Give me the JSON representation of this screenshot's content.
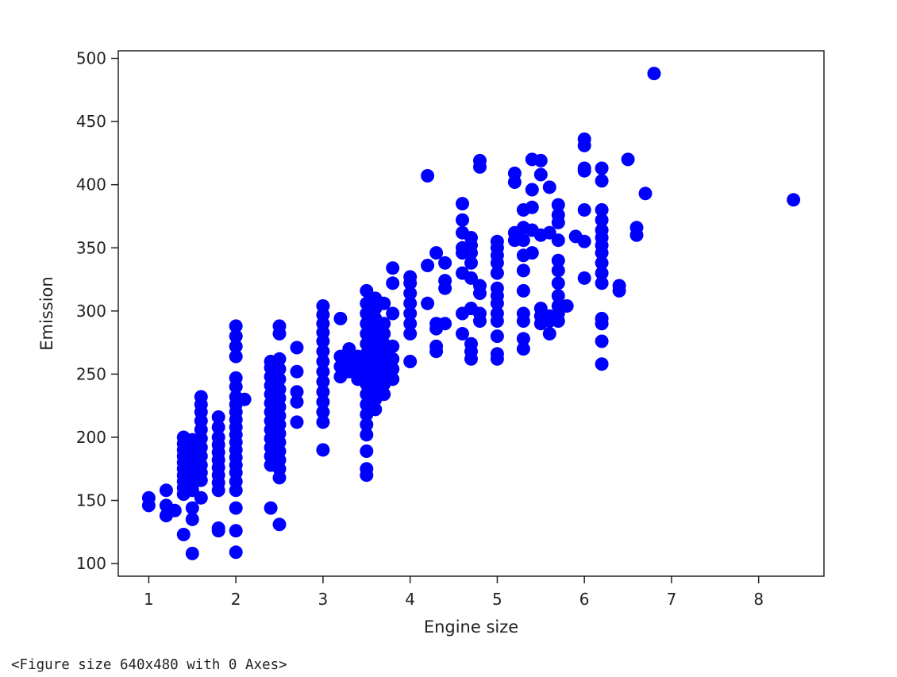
{
  "chart_data": {
    "type": "scatter",
    "xlabel": "Engine size",
    "ylabel": "Emission",
    "xlim": [
      0.65,
      8.75
    ],
    "ylim": [
      90,
      506
    ],
    "x_ticks": [
      1,
      2,
      3,
      4,
      5,
      6,
      7,
      8
    ],
    "y_ticks": [
      100,
      150,
      200,
      250,
      300,
      350,
      400,
      450,
      500
    ],
    "grid": false,
    "legend": "none",
    "marker_color": "#0000ff",
    "points": [
      [
        1.0,
        146
      ],
      [
        1.0,
        152
      ],
      [
        1.2,
        138
      ],
      [
        1.2,
        146
      ],
      [
        1.2,
        158
      ],
      [
        1.3,
        142
      ],
      [
        1.4,
        123
      ],
      [
        1.4,
        155
      ],
      [
        1.4,
        160
      ],
      [
        1.4,
        165
      ],
      [
        1.4,
        170
      ],
      [
        1.4,
        175
      ],
      [
        1.4,
        180
      ],
      [
        1.4,
        185
      ],
      [
        1.4,
        190
      ],
      [
        1.4,
        195
      ],
      [
        1.4,
        200
      ],
      [
        1.5,
        108
      ],
      [
        1.5,
        135
      ],
      [
        1.5,
        144
      ],
      [
        1.5,
        158
      ],
      [
        1.5,
        162
      ],
      [
        1.5,
        168
      ],
      [
        1.5,
        172
      ],
      [
        1.5,
        176
      ],
      [
        1.5,
        182
      ],
      [
        1.5,
        188
      ],
      [
        1.5,
        194
      ],
      [
        1.5,
        198
      ],
      [
        1.6,
        152
      ],
      [
        1.6,
        166
      ],
      [
        1.6,
        172
      ],
      [
        1.6,
        178
      ],
      [
        1.6,
        185
      ],
      [
        1.6,
        192
      ],
      [
        1.6,
        199
      ],
      [
        1.6,
        206
      ],
      [
        1.6,
        213
      ],
      [
        1.6,
        220
      ],
      [
        1.6,
        226
      ],
      [
        1.6,
        232
      ],
      [
        1.8,
        126
      ],
      [
        1.8,
        128
      ],
      [
        1.8,
        158
      ],
      [
        1.8,
        164
      ],
      [
        1.8,
        170
      ],
      [
        1.8,
        176
      ],
      [
        1.8,
        182
      ],
      [
        1.8,
        188
      ],
      [
        1.8,
        194
      ],
      [
        1.8,
        200
      ],
      [
        1.8,
        208
      ],
      [
        1.8,
        216
      ],
      [
        2.0,
        109
      ],
      [
        2.0,
        126
      ],
      [
        2.0,
        144
      ],
      [
        2.0,
        158
      ],
      [
        2.0,
        165
      ],
      [
        2.0,
        172
      ],
      [
        2.0,
        178
      ],
      [
        2.0,
        184
      ],
      [
        2.0,
        190
      ],
      [
        2.0,
        196
      ],
      [
        2.0,
        202
      ],
      [
        2.0,
        208
      ],
      [
        2.0,
        214
      ],
      [
        2.0,
        220
      ],
      [
        2.0,
        226
      ],
      [
        2.0,
        232
      ],
      [
        2.0,
        240
      ],
      [
        2.0,
        247
      ],
      [
        2.0,
        264
      ],
      [
        2.0,
        272
      ],
      [
        2.0,
        280
      ],
      [
        2.0,
        288
      ],
      [
        2.1,
        230
      ],
      [
        2.4,
        144
      ],
      [
        2.4,
        178
      ],
      [
        2.4,
        185
      ],
      [
        2.4,
        192
      ],
      [
        2.4,
        199
      ],
      [
        2.4,
        206
      ],
      [
        2.4,
        213
      ],
      [
        2.4,
        220
      ],
      [
        2.4,
        227
      ],
      [
        2.4,
        234
      ],
      [
        2.4,
        241
      ],
      [
        2.4,
        248
      ],
      [
        2.4,
        255
      ],
      [
        2.4,
        260
      ],
      [
        2.5,
        131
      ],
      [
        2.5,
        168
      ],
      [
        2.5,
        175
      ],
      [
        2.5,
        182
      ],
      [
        2.5,
        189
      ],
      [
        2.5,
        196
      ],
      [
        2.5,
        203
      ],
      [
        2.5,
        210
      ],
      [
        2.5,
        217
      ],
      [
        2.5,
        224
      ],
      [
        2.5,
        231
      ],
      [
        2.5,
        238
      ],
      [
        2.5,
        246
      ],
      [
        2.5,
        254
      ],
      [
        2.5,
        262
      ],
      [
        2.5,
        282
      ],
      [
        2.5,
        288
      ],
      [
        2.7,
        212
      ],
      [
        2.7,
        228
      ],
      [
        2.7,
        236
      ],
      [
        2.7,
        252
      ],
      [
        2.7,
        271
      ],
      [
        3.0,
        190
      ],
      [
        3.0,
        212
      ],
      [
        3.0,
        220
      ],
      [
        3.0,
        228
      ],
      [
        3.0,
        236
      ],
      [
        3.0,
        244
      ],
      [
        3.0,
        252
      ],
      [
        3.0,
        260
      ],
      [
        3.0,
        268
      ],
      [
        3.0,
        276
      ],
      [
        3.0,
        283
      ],
      [
        3.0,
        290
      ],
      [
        3.0,
        297
      ],
      [
        3.0,
        304
      ],
      [
        3.2,
        248
      ],
      [
        3.2,
        256
      ],
      [
        3.2,
        264
      ],
      [
        3.2,
        294
      ],
      [
        3.3,
        252
      ],
      [
        3.3,
        262
      ],
      [
        3.3,
        270
      ],
      [
        3.4,
        246
      ],
      [
        3.4,
        252
      ],
      [
        3.4,
        258
      ],
      [
        3.4,
        264
      ],
      [
        3.5,
        170
      ],
      [
        3.5,
        175
      ],
      [
        3.5,
        189
      ],
      [
        3.5,
        202
      ],
      [
        3.5,
        210
      ],
      [
        3.5,
        218
      ],
      [
        3.5,
        226
      ],
      [
        3.5,
        234
      ],
      [
        3.5,
        242
      ],
      [
        3.5,
        250
      ],
      [
        3.5,
        258
      ],
      [
        3.5,
        266
      ],
      [
        3.5,
        274
      ],
      [
        3.5,
        282
      ],
      [
        3.5,
        290
      ],
      [
        3.5,
        298
      ],
      [
        3.5,
        306
      ],
      [
        3.5,
        316
      ],
      [
        3.6,
        222
      ],
      [
        3.6,
        230
      ],
      [
        3.6,
        238
      ],
      [
        3.6,
        246
      ],
      [
        3.6,
        254
      ],
      [
        3.6,
        262
      ],
      [
        3.6,
        270
      ],
      [
        3.6,
        278
      ],
      [
        3.6,
        286
      ],
      [
        3.6,
        294
      ],
      [
        3.6,
        302
      ],
      [
        3.6,
        310
      ],
      [
        3.7,
        234
      ],
      [
        3.7,
        242
      ],
      [
        3.7,
        250
      ],
      [
        3.7,
        258
      ],
      [
        3.7,
        266
      ],
      [
        3.7,
        274
      ],
      [
        3.7,
        282
      ],
      [
        3.7,
        290
      ],
      [
        3.7,
        306
      ],
      [
        3.8,
        246
      ],
      [
        3.8,
        254
      ],
      [
        3.8,
        262
      ],
      [
        3.8,
        272
      ],
      [
        3.8,
        298
      ],
      [
        3.8,
        322
      ],
      [
        3.8,
        334
      ],
      [
        4.0,
        260
      ],
      [
        4.0,
        282
      ],
      [
        4.0,
        290
      ],
      [
        4.0,
        298
      ],
      [
        4.0,
        306
      ],
      [
        4.0,
        314
      ],
      [
        4.0,
        322
      ],
      [
        4.0,
        327
      ],
      [
        4.2,
        306
      ],
      [
        4.2,
        336
      ],
      [
        4.2,
        407
      ],
      [
        4.3,
        268
      ],
      [
        4.3,
        272
      ],
      [
        4.3,
        286
      ],
      [
        4.3,
        290
      ],
      [
        4.3,
        346
      ],
      [
        4.4,
        290
      ],
      [
        4.4,
        318
      ],
      [
        4.4,
        324
      ],
      [
        4.4,
        338
      ],
      [
        4.6,
        282
      ],
      [
        4.6,
        298
      ],
      [
        4.6,
        330
      ],
      [
        4.6,
        346
      ],
      [
        4.6,
        350
      ],
      [
        4.6,
        362
      ],
      [
        4.6,
        372
      ],
      [
        4.6,
        385
      ],
      [
        4.7,
        262
      ],
      [
        4.7,
        268
      ],
      [
        4.7,
        274
      ],
      [
        4.7,
        302
      ],
      [
        4.7,
        326
      ],
      [
        4.7,
        338
      ],
      [
        4.7,
        346
      ],
      [
        4.7,
        352
      ],
      [
        4.7,
        358
      ],
      [
        4.8,
        292
      ],
      [
        4.8,
        298
      ],
      [
        4.8,
        314
      ],
      [
        4.8,
        320
      ],
      [
        4.8,
        414
      ],
      [
        4.8,
        419
      ],
      [
        5.0,
        262
      ],
      [
        5.0,
        266
      ],
      [
        5.0,
        280
      ],
      [
        5.0,
        292
      ],
      [
        5.0,
        298
      ],
      [
        5.0,
        306
      ],
      [
        5.0,
        312
      ],
      [
        5.0,
        318
      ],
      [
        5.0,
        330
      ],
      [
        5.0,
        338
      ],
      [
        5.0,
        344
      ],
      [
        5.0,
        350
      ],
      [
        5.0,
        355
      ],
      [
        5.2,
        356
      ],
      [
        5.2,
        362
      ],
      [
        5.2,
        402
      ],
      [
        5.2,
        409
      ],
      [
        5.3,
        270
      ],
      [
        5.3,
        278
      ],
      [
        5.3,
        292
      ],
      [
        5.3,
        298
      ],
      [
        5.3,
        316
      ],
      [
        5.3,
        332
      ],
      [
        5.3,
        344
      ],
      [
        5.3,
        356
      ],
      [
        5.3,
        366
      ],
      [
        5.3,
        380
      ],
      [
        5.4,
        346
      ],
      [
        5.4,
        364
      ],
      [
        5.4,
        382
      ],
      [
        5.4,
        396
      ],
      [
        5.4,
        420
      ],
      [
        5.5,
        290
      ],
      [
        5.5,
        296
      ],
      [
        5.5,
        302
      ],
      [
        5.5,
        360
      ],
      [
        5.5,
        408
      ],
      [
        5.5,
        419
      ],
      [
        5.6,
        282
      ],
      [
        5.6,
        292
      ],
      [
        5.6,
        296
      ],
      [
        5.6,
        362
      ],
      [
        5.6,
        398
      ],
      [
        5.7,
        292
      ],
      [
        5.7,
        298
      ],
      [
        5.7,
        304
      ],
      [
        5.7,
        312
      ],
      [
        5.7,
        322
      ],
      [
        5.7,
        332
      ],
      [
        5.7,
        340
      ],
      [
        5.7,
        356
      ],
      [
        5.7,
        370
      ],
      [
        5.7,
        376
      ],
      [
        5.7,
        384
      ],
      [
        5.8,
        304
      ],
      [
        5.9,
        359
      ],
      [
        6.0,
        326
      ],
      [
        6.0,
        355
      ],
      [
        6.0,
        380
      ],
      [
        6.0,
        411
      ],
      [
        6.0,
        413
      ],
      [
        6.0,
        431
      ],
      [
        6.0,
        436
      ],
      [
        6.2,
        258
      ],
      [
        6.2,
        276
      ],
      [
        6.2,
        290
      ],
      [
        6.2,
        294
      ],
      [
        6.2,
        322
      ],
      [
        6.2,
        330
      ],
      [
        6.2,
        338
      ],
      [
        6.2,
        346
      ],
      [
        6.2,
        352
      ],
      [
        6.2,
        358
      ],
      [
        6.2,
        364
      ],
      [
        6.2,
        372
      ],
      [
        6.2,
        380
      ],
      [
        6.2,
        403
      ],
      [
        6.2,
        413
      ],
      [
        6.4,
        316
      ],
      [
        6.4,
        320
      ],
      [
        6.5,
        420
      ],
      [
        6.6,
        360
      ],
      [
        6.6,
        366
      ],
      [
        6.7,
        393
      ],
      [
        6.8,
        488
      ],
      [
        8.4,
        388
      ]
    ]
  },
  "output": {
    "caption": "<Figure size 640x480 with 0 Axes>"
  }
}
